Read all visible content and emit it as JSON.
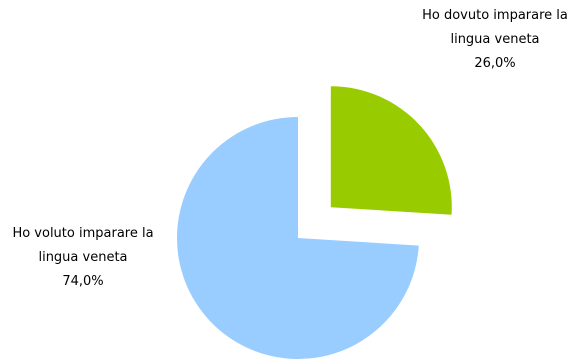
{
  "chart_data": {
    "type": "pie",
    "slices": [
      {
        "label": "Ho dovuto imparare la lingua veneta",
        "value": 26.0,
        "value_label": "26,0%",
        "color": "#99cc00",
        "exploded": true
      },
      {
        "label": "Ho voluto imparare la lingua veneta",
        "value": 74.0,
        "value_label": "74,0%",
        "color": "#99ccff",
        "exploded": false
      }
    ],
    "title": "",
    "legend": "none"
  }
}
